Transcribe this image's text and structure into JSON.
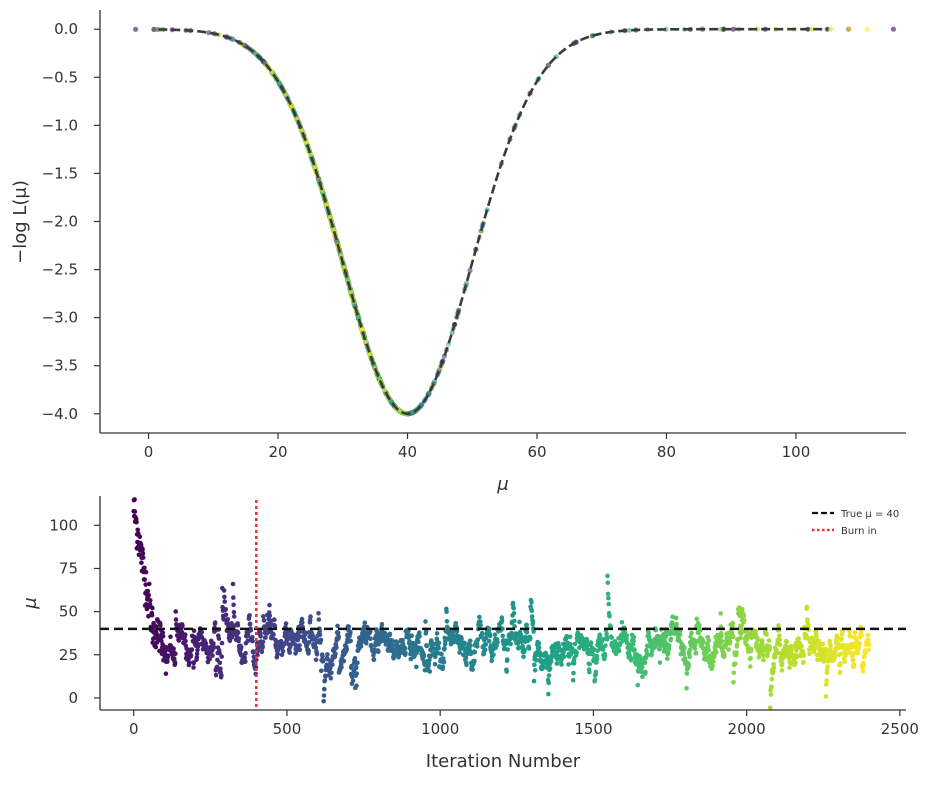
{
  "chart_data": [
    {
      "type": "scatter",
      "title": "",
      "xlabel": "μ",
      "ylabel": "−log L(μ)",
      "xlim": [
        -7.5,
        117
      ],
      "ylim": [
        -4.2,
        0.2
      ],
      "xticks": [
        0,
        20,
        40,
        60,
        80,
        100
      ],
      "yticks": [
        0.0,
        -0.5,
        -1.0,
        -1.5,
        -2.0,
        -2.5,
        -3.0,
        -3.5,
        -4.0
      ],
      "xtick_labels": [
        "0",
        "20",
        "40",
        "60",
        "80",
        "100"
      ],
      "ytick_labels": [
        "0.0",
        "−0.5",
        "−1.0",
        "−1.5",
        "−2.0",
        "−2.5",
        "−3.0",
        "−3.5",
        "−4.0"
      ],
      "curve": {
        "description": "dashed reference curve: -4 * exp(-(mu-40)^2 / (2*10^2))",
        "peak_mu": 40,
        "peak_value": -4.0,
        "width": 10,
        "color": "#3a3a3a",
        "style": "dashed"
      },
      "points_colormap": "viridis (by iteration)",
      "x_range_of_points": [
        -2,
        111
      ],
      "grid": false
    },
    {
      "type": "scatter",
      "title": "",
      "xlabel": "Iteration Number",
      "ylabel": "μ",
      "xlim": [
        -110,
        2520
      ],
      "ylim": [
        -7,
        117
      ],
      "xticks": [
        0,
        500,
        1000,
        1500,
        2000,
        2500
      ],
      "yticks": [
        0,
        25,
        50,
        75,
        100
      ],
      "xtick_labels": [
        "0",
        "500",
        "1000",
        "1500",
        "2000",
        "2500"
      ],
      "ytick_labels": [
        "0",
        "25",
        "50",
        "75",
        "100"
      ],
      "n_iterations": 2400,
      "start_value": 110,
      "plateau_mean": 30,
      "true_mu": 40,
      "burn_in": 400,
      "points_colormap": "viridis (by iteration)",
      "legend": {
        "placement": "top-right",
        "entries": [
          {
            "label": "True μ = 40",
            "style": "dashed",
            "color": "#111111"
          },
          {
            "label": "Burn in",
            "style": "dotted",
            "color": "#e8323c"
          }
        ]
      },
      "grid": false
    }
  ]
}
